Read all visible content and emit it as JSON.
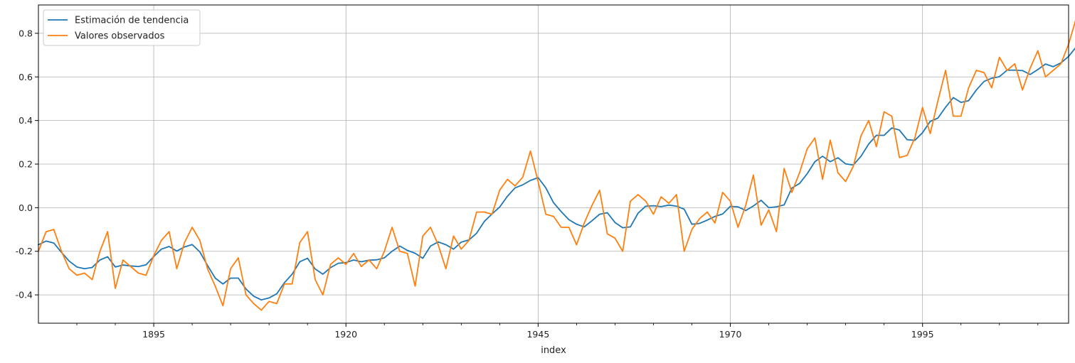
{
  "chart_data": {
    "type": "line",
    "title": "",
    "xlabel": "index",
    "ylabel": "",
    "xlim": [
      1880,
      2014
    ],
    "ylim": [
      -0.53,
      0.93
    ],
    "x_ticks": [
      1895,
      1920,
      1945,
      1970,
      1995
    ],
    "x_tick_labels": [
      "1895",
      "1920",
      "1945",
      "1970",
      "1995"
    ],
    "y_ticks": [
      -0.4,
      -0.2,
      0.0,
      0.2,
      0.4,
      0.6,
      0.8
    ],
    "y_tick_labels": [
      "-0.4",
      "-0.2",
      "0.0",
      "0.2",
      "0.4",
      "0.6",
      "0.8"
    ],
    "grid": true,
    "legend_position": "top-left",
    "x_start": 1880,
    "series": [
      {
        "name": "Estimación de tendencia",
        "color": "#1f77b4",
        "values": [
          -0.17,
          -0.153,
          -0.162,
          -0.205,
          -0.245,
          -0.272,
          -0.28,
          -0.274,
          -0.24,
          -0.225,
          -0.272,
          -0.263,
          -0.267,
          -0.27,
          -0.262,
          -0.224,
          -0.19,
          -0.178,
          -0.199,
          -0.18,
          -0.169,
          -0.203,
          -0.265,
          -0.323,
          -0.35,
          -0.323,
          -0.323,
          -0.373,
          -0.406,
          -0.423,
          -0.414,
          -0.395,
          -0.344,
          -0.305,
          -0.248,
          -0.232,
          -0.281,
          -0.305,
          -0.275,
          -0.255,
          -0.252,
          -0.24,
          -0.248,
          -0.241,
          -0.239,
          -0.23,
          -0.2,
          -0.176,
          -0.196,
          -0.209,
          -0.232,
          -0.176,
          -0.157,
          -0.17,
          -0.19,
          -0.158,
          -0.148,
          -0.117,
          -0.063,
          -0.029,
          0.003,
          0.052,
          0.091,
          0.105,
          0.125,
          0.138,
          0.091,
          0.023,
          -0.018,
          -0.055,
          -0.076,
          -0.088,
          -0.06,
          -0.03,
          -0.023,
          -0.068,
          -0.092,
          -0.088,
          -0.025,
          0.007,
          0.009,
          0.005,
          0.012,
          0.007,
          -0.007,
          -0.076,
          -0.072,
          -0.057,
          -0.04,
          -0.029,
          0.006,
          0.004,
          -0.013,
          0.008,
          0.034,
          0.0,
          0.004,
          0.013,
          0.09,
          0.111,
          0.156,
          0.211,
          0.236,
          0.211,
          0.229,
          0.201,
          0.196,
          0.236,
          0.292,
          0.332,
          0.332,
          0.366,
          0.356,
          0.312,
          0.309,
          0.344,
          0.396,
          0.411,
          0.461,
          0.505,
          0.483,
          0.491,
          0.54,
          0.579,
          0.594,
          0.601,
          0.631,
          0.631,
          0.629,
          0.611,
          0.634,
          0.659,
          0.647,
          0.664,
          0.694,
          0.738,
          0.796
        ]
      },
      {
        "name": "Valores observados",
        "color": "#ff7f0e",
        "values": [
          -0.2,
          -0.11,
          -0.1,
          -0.2,
          -0.28,
          -0.31,
          -0.3,
          -0.33,
          -0.2,
          -0.11,
          -0.37,
          -0.24,
          -0.27,
          -0.3,
          -0.31,
          -0.22,
          -0.15,
          -0.11,
          -0.28,
          -0.16,
          -0.09,
          -0.15,
          -0.28,
          -0.36,
          -0.45,
          -0.28,
          -0.23,
          -0.4,
          -0.44,
          -0.47,
          -0.43,
          -0.44,
          -0.35,
          -0.35,
          -0.16,
          -0.11,
          -0.33,
          -0.4,
          -0.26,
          -0.23,
          -0.26,
          -0.21,
          -0.27,
          -0.24,
          -0.28,
          -0.2,
          -0.09,
          -0.2,
          -0.21,
          -0.36,
          -0.13,
          -0.09,
          -0.17,
          -0.28,
          -0.13,
          -0.19,
          -0.15,
          -0.02,
          -0.02,
          -0.03,
          0.08,
          0.13,
          0.1,
          0.14,
          0.26,
          0.12,
          -0.03,
          -0.04,
          -0.09,
          -0.09,
          -0.17,
          -0.07,
          0.01,
          0.08,
          -0.12,
          -0.14,
          -0.2,
          0.03,
          0.06,
          0.03,
          -0.03,
          0.05,
          0.02,
          0.06,
          -0.2,
          -0.1,
          -0.05,
          -0.02,
          -0.07,
          0.07,
          0.03,
          -0.09,
          0.01,
          0.15,
          -0.08,
          -0.01,
          -0.11,
          0.18,
          0.07,
          0.16,
          0.27,
          0.32,
          0.13,
          0.31,
          0.16,
          0.12,
          0.19,
          0.33,
          0.4,
          0.28,
          0.44,
          0.42,
          0.23,
          0.24,
          0.32,
          0.46,
          0.34,
          0.49,
          0.63,
          0.42,
          0.42,
          0.55,
          0.63,
          0.62,
          0.55,
          0.69,
          0.63,
          0.66,
          0.54,
          0.64,
          0.72,
          0.6,
          0.63,
          0.66,
          0.75,
          0.87
        ]
      }
    ]
  }
}
